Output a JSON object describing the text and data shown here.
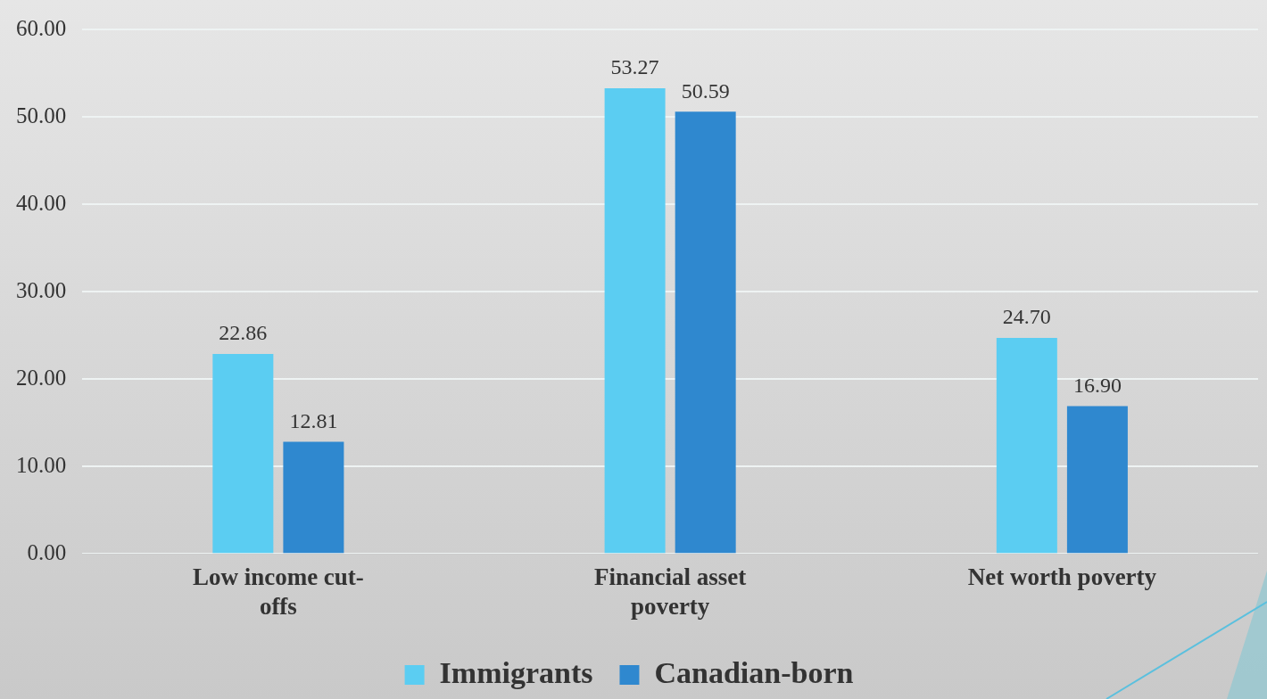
{
  "chart_data": {
    "type": "bar",
    "categories": [
      "Low income cut-offs",
      "Financial asset poverty",
      "Net worth poverty"
    ],
    "series": [
      {
        "name": "Immigrants",
        "color": "#5bcdf2",
        "values": [
          22.86,
          53.27,
          24.7
        ],
        "value_labels": [
          "22.86",
          "53.27",
          "24.70"
        ]
      },
      {
        "name": "Canadian-born",
        "color": "#2f88cf",
        "values": [
          12.81,
          50.59,
          16.9
        ],
        "value_labels": [
          "12.81",
          "50.59",
          "16.90"
        ]
      }
    ],
    "ylim": [
      0,
      60
    ],
    "yticks": [
      {
        "value": 0,
        "label": "0.00"
      },
      {
        "value": 10,
        "label": "10.00"
      },
      {
        "value": 20,
        "label": "20.00"
      },
      {
        "value": 30,
        "label": "30.00"
      },
      {
        "value": 40,
        "label": "40.00"
      },
      {
        "value": 50,
        "label": "50.00"
      },
      {
        "value": 60,
        "label": "60.00"
      }
    ],
    "grid": "y",
    "legend": "bottom"
  }
}
